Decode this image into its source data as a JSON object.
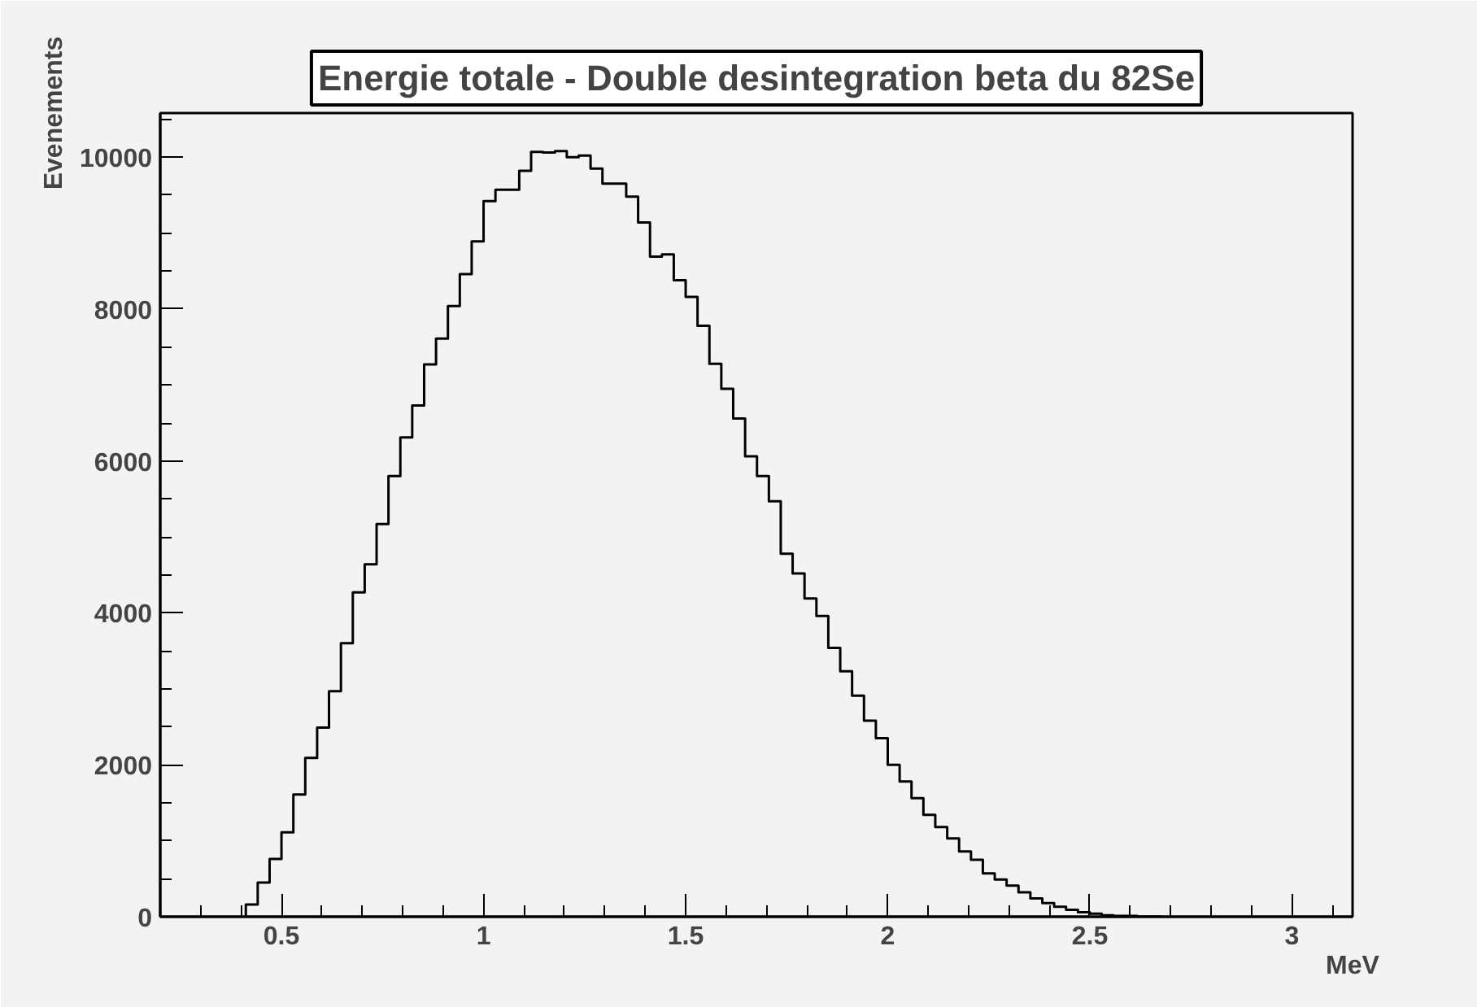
{
  "chart_data": {
    "type": "histogram",
    "title": "Energie totale - Double desintegration beta du 82Se",
    "xlabel": "MeV",
    "ylabel": "Evenements",
    "bins": [
      0.4118,
      0.4412,
      0.4706,
      0.5,
      0.5294,
      0.5588,
      0.5882,
      0.6176,
      0.6471,
      0.6765,
      0.7059,
      0.7353,
      0.7647,
      0.7941,
      0.8235,
      0.8529,
      0.8824,
      0.9118,
      0.9412,
      0.9706,
      1.0,
      1.0294,
      1.0588,
      1.0882,
      1.1176,
      1.1471,
      1.1765,
      1.2059,
      1.2353,
      1.2647,
      1.2941,
      1.3235,
      1.3529,
      1.3824,
      1.4118,
      1.4412,
      1.4706,
      1.5,
      1.5294,
      1.5588,
      1.5882,
      1.6176,
      1.6471,
      1.6765,
      1.7059,
      1.7353,
      1.7647,
      1.7941,
      1.8235,
      1.8529,
      1.8824,
      1.9118,
      1.9412,
      1.9706,
      2.0,
      2.0294,
      2.0588,
      2.0882,
      2.1176,
      2.1471,
      2.1765,
      2.2059,
      2.2353,
      2.2647,
      2.2941,
      2.3235,
      2.3529,
      2.3824,
      2.4118,
      2.4412,
      2.4706,
      2.5,
      2.5294,
      2.5588,
      2.5882,
      2.6176,
      2.6471,
      2.6765
    ],
    "values": [
      160,
      450,
      760,
      1110,
      1610,
      2090,
      2490,
      2970,
      3600,
      4270,
      4640,
      5170,
      5800,
      6310,
      6730,
      7270,
      7610,
      8040,
      8460,
      8890,
      9420,
      9570,
      9570,
      9820,
      10070,
      10060,
      10080,
      10000,
      10020,
      9850,
      9650,
      9650,
      9480,
      9140,
      8690,
      8720,
      8380,
      8160,
      7780,
      7280,
      6950,
      6560,
      6060,
      5800,
      5470,
      4780,
      4520,
      4190,
      3960,
      3540,
      3230,
      2910,
      2580,
      2350,
      2000,
      1780,
      1560,
      1340,
      1180,
      1030,
      860,
      750,
      570,
      490,
      410,
      320,
      240,
      180,
      130,
      90,
      60,
      40,
      20,
      10,
      10,
      0,
      0
    ],
    "color": "#000000",
    "xlim": [
      0.2,
      3.15
    ],
    "ylim": [
      0,
      10580
    ],
    "xticks": [
      0.5,
      1,
      1.5,
      2,
      2.5,
      3
    ],
    "yticks": [
      0,
      2000,
      4000,
      6000,
      8000,
      10000
    ],
    "grid": false
  }
}
